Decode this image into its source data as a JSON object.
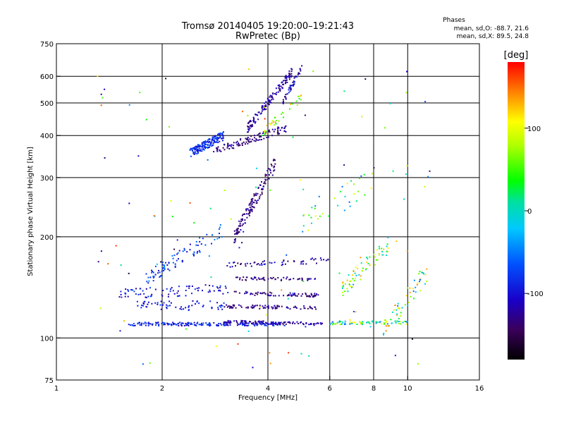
{
  "chart_data": {
    "type": "scatter",
    "title": "Tromsø 20140405 19:20:00–19:21:43",
    "subtitle": "RwPretec (Bp)",
    "xlabel": "Frequency [MHz]",
    "ylabel": "Stationary phase Virtual Height [km]",
    "x_scale": "log2",
    "y_scale": "log",
    "xlim": [
      1,
      16
    ],
    "ylim": [
      75,
      750
    ],
    "x_ticks": [
      1,
      2,
      4,
      6,
      8,
      10,
      16
    ],
    "x_tick_labels": [
      "1",
      "2",
      "4",
      "6",
      "8",
      "10",
      "16"
    ],
    "y_ticks": [
      75,
      100,
      200,
      300,
      400,
      500,
      600,
      750
    ],
    "y_tick_labels": [
      "75",
      "100",
      "200",
      "300",
      "400",
      "500",
      "600",
      "750"
    ],
    "grid": true,
    "stats": {
      "heading": "Phases",
      "line_o": "mean, sd,O: -88.7, 21.6",
      "line_x": "mean, sd,X:  89.5, 24.8"
    },
    "colorbar": {
      "label": "[deg]",
      "min": -180,
      "max": 180,
      "tick_values": [
        100,
        0,
        -100
      ],
      "tick_labels": [
        "100",
        "0",
        "-100"
      ],
      "colormap": "rainbow"
    },
    "traces": [
      {
        "x0": 1.6,
        "x1": 4.5,
        "y0": 110,
        "y1": 110,
        "n": 190,
        "jitter": 0.012,
        "phase": [
          -120,
          -60
        ]
      },
      {
        "x0": 3.0,
        "x1": 5.8,
        "y0": 112,
        "y1": 110,
        "n": 90,
        "jitter": 0.01,
        "phase": [
          -140,
          -100
        ]
      },
      {
        "x0": 6.0,
        "x1": 10.0,
        "y0": 111,
        "y1": 111,
        "n": 70,
        "jitter": 0.012,
        "phase": [
          -60,
          120
        ]
      },
      {
        "x0": 1.7,
        "x1": 3.0,
        "y0": 125,
        "y1": 125,
        "n": 60,
        "jitter": 0.03,
        "phase": [
          -120,
          -70
        ]
      },
      {
        "x0": 3.0,
        "x1": 5.5,
        "y0": 124,
        "y1": 123,
        "n": 80,
        "jitter": 0.012,
        "phase": [
          -145,
          -110
        ]
      },
      {
        "x0": 1.5,
        "x1": 3.1,
        "y0": 135,
        "y1": 140,
        "n": 80,
        "jitter": 0.035,
        "phase": [
          -130,
          -70
        ]
      },
      {
        "x0": 3.2,
        "x1": 5.6,
        "y0": 136,
        "y1": 134,
        "n": 70,
        "jitter": 0.012,
        "phase": [
          -150,
          -110
        ]
      },
      {
        "x0": 3.2,
        "x1": 5.5,
        "y0": 150,
        "y1": 150,
        "n": 55,
        "jitter": 0.012,
        "phase": [
          -150,
          -110
        ]
      },
      {
        "x0": 3.0,
        "x1": 6.0,
        "y0": 165,
        "y1": 170,
        "n": 55,
        "jitter": 0.02,
        "phase": [
          -150,
          -90
        ]
      },
      {
        "x0": 1.8,
        "x1": 3.0,
        "y0": 150,
        "y1": 210,
        "n": 90,
        "jitter": 0.05,
        "phase": [
          -110,
          -40
        ]
      },
      {
        "x0": 3.2,
        "x1": 4.2,
        "y0": 200,
        "y1": 330,
        "n": 130,
        "jitter": 0.05,
        "phase": [
          -150,
          -110
        ]
      },
      {
        "x0": 2.4,
        "x1": 3.0,
        "y0": 355,
        "y1": 400,
        "n": 170,
        "jitter": 0.03,
        "phase": [
          -110,
          -60
        ]
      },
      {
        "x0": 2.8,
        "x1": 4.5,
        "y0": 360,
        "y1": 420,
        "n": 110,
        "jitter": 0.025,
        "phase": [
          -150,
          -110
        ]
      },
      {
        "x0": 3.5,
        "x1": 4.7,
        "y0": 420,
        "y1": 620,
        "n": 130,
        "jitter": 0.03,
        "phase": [
          -145,
          -100
        ]
      },
      {
        "x0": 4.4,
        "x1": 5.0,
        "y0": 500,
        "y1": 640,
        "n": 45,
        "jitter": 0.02,
        "phase": [
          -140,
          -80
        ]
      },
      {
        "x0": 3.8,
        "x1": 5.0,
        "y0": 400,
        "y1": 520,
        "n": 35,
        "jitter": 0.03,
        "phase": [
          20,
          140
        ]
      },
      {
        "x0": 6.5,
        "x1": 8.8,
        "y0": 140,
        "y1": 190,
        "n": 70,
        "jitter": 0.06,
        "phase": [
          -40,
          140
        ]
      },
      {
        "x0": 8.5,
        "x1": 11.5,
        "y0": 105,
        "y1": 160,
        "n": 55,
        "jitter": 0.07,
        "phase": [
          -60,
          150
        ]
      },
      {
        "x0": 5.0,
        "x1": 8.0,
        "y0": 220,
        "y1": 300,
        "n": 35,
        "jitter": 0.1,
        "phase": [
          -60,
          120
        ]
      },
      {
        "x0": 1.3,
        "x1": 12.0,
        "y0": 80,
        "y1": 650,
        "n": 110,
        "jitter": 0.0,
        "phase": [
          -170,
          170
        ]
      }
    ]
  }
}
